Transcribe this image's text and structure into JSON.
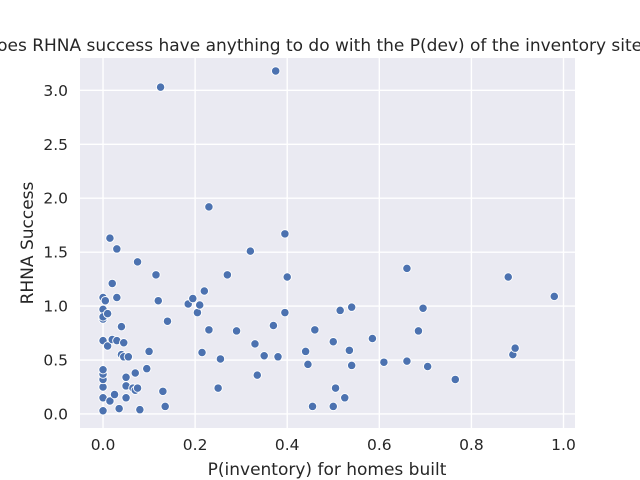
{
  "chart_data": {
    "type": "scatter",
    "title": "Does RHNA success have anything to do with the P(dev) of the inventory sites?",
    "xlabel": "P(inventory) for homes built",
    "ylabel": "RHNA Success",
    "xlim": [
      -0.05,
      1.025
    ],
    "ylim": [
      -0.13,
      3.3
    ],
    "xticks": [
      0.0,
      0.2,
      0.4,
      0.6,
      0.8,
      1.0
    ],
    "xtick_labels": [
      "0.0",
      "0.2",
      "0.4",
      "0.6",
      "0.8",
      "1.0"
    ],
    "yticks": [
      0.0,
      0.5,
      1.0,
      1.5,
      2.0,
      2.5,
      3.0
    ],
    "ytick_labels": [
      "0.0",
      "0.5",
      "1.0",
      "1.5",
      "2.0",
      "2.5",
      "3.0"
    ],
    "grid": true,
    "background": "#EAEAF2",
    "point_color": "#4C72B0",
    "series": [
      {
        "x": [
          0.0,
          0.0,
          0.0,
          0.0,
          0.0,
          0.0,
          0.0,
          0.0,
          0.0,
          0.0,
          0.0,
          0.005,
          0.01,
          0.01,
          0.015,
          0.015,
          0.02,
          0.02,
          0.025,
          0.03,
          0.03,
          0.03,
          0.035,
          0.04,
          0.04,
          0.045,
          0.045,
          0.05,
          0.05,
          0.05,
          0.055,
          0.065,
          0.07,
          0.07,
          0.075,
          0.075,
          0.08,
          0.095,
          0.1,
          0.115,
          0.12,
          0.125,
          0.13,
          0.135,
          0.14,
          0.185,
          0.195,
          0.205,
          0.21,
          0.215,
          0.22,
          0.23,
          0.23,
          0.25,
          0.255,
          0.27,
          0.29,
          0.32,
          0.33,
          0.335,
          0.35,
          0.37,
          0.375,
          0.38,
          0.395,
          0.395,
          0.4,
          0.44,
          0.445,
          0.455,
          0.46,
          0.5,
          0.5,
          0.505,
          0.515,
          0.525,
          0.535,
          0.54,
          0.54,
          0.585,
          0.61,
          0.66,
          0.66,
          0.685,
          0.695,
          0.705,
          0.765,
          0.88,
          0.89,
          0.895,
          0.98
        ],
        "y": [
          0.03,
          0.15,
          0.25,
          0.32,
          0.37,
          0.41,
          0.68,
          0.88,
          0.97,
          1.08,
          0.9,
          1.05,
          0.93,
          0.63,
          1.63,
          0.12,
          1.21,
          0.69,
          0.18,
          1.08,
          1.53,
          0.68,
          0.05,
          0.81,
          0.55,
          0.66,
          0.53,
          0.26,
          0.34,
          0.15,
          0.53,
          0.24,
          0.22,
          0.38,
          1.41,
          0.24,
          0.04,
          0.42,
          0.58,
          1.29,
          1.05,
          3.03,
          0.21,
          0.07,
          0.86,
          1.02,
          1.07,
          0.94,
          1.01,
          0.57,
          1.14,
          0.78,
          1.92,
          0.24,
          0.51,
          1.29,
          0.77,
          1.51,
          0.65,
          0.36,
          0.54,
          0.82,
          3.18,
          0.53,
          1.67,
          0.94,
          1.27,
          0.58,
          0.46,
          0.07,
          0.78,
          0.07,
          0.67,
          0.24,
          0.96,
          0.15,
          0.59,
          0.45,
          0.99,
          0.7,
          0.48,
          1.35,
          0.49,
          0.77,
          0.98,
          0.44,
          0.32,
          1.27,
          0.55,
          0.61,
          1.09
        ]
      }
    ]
  }
}
